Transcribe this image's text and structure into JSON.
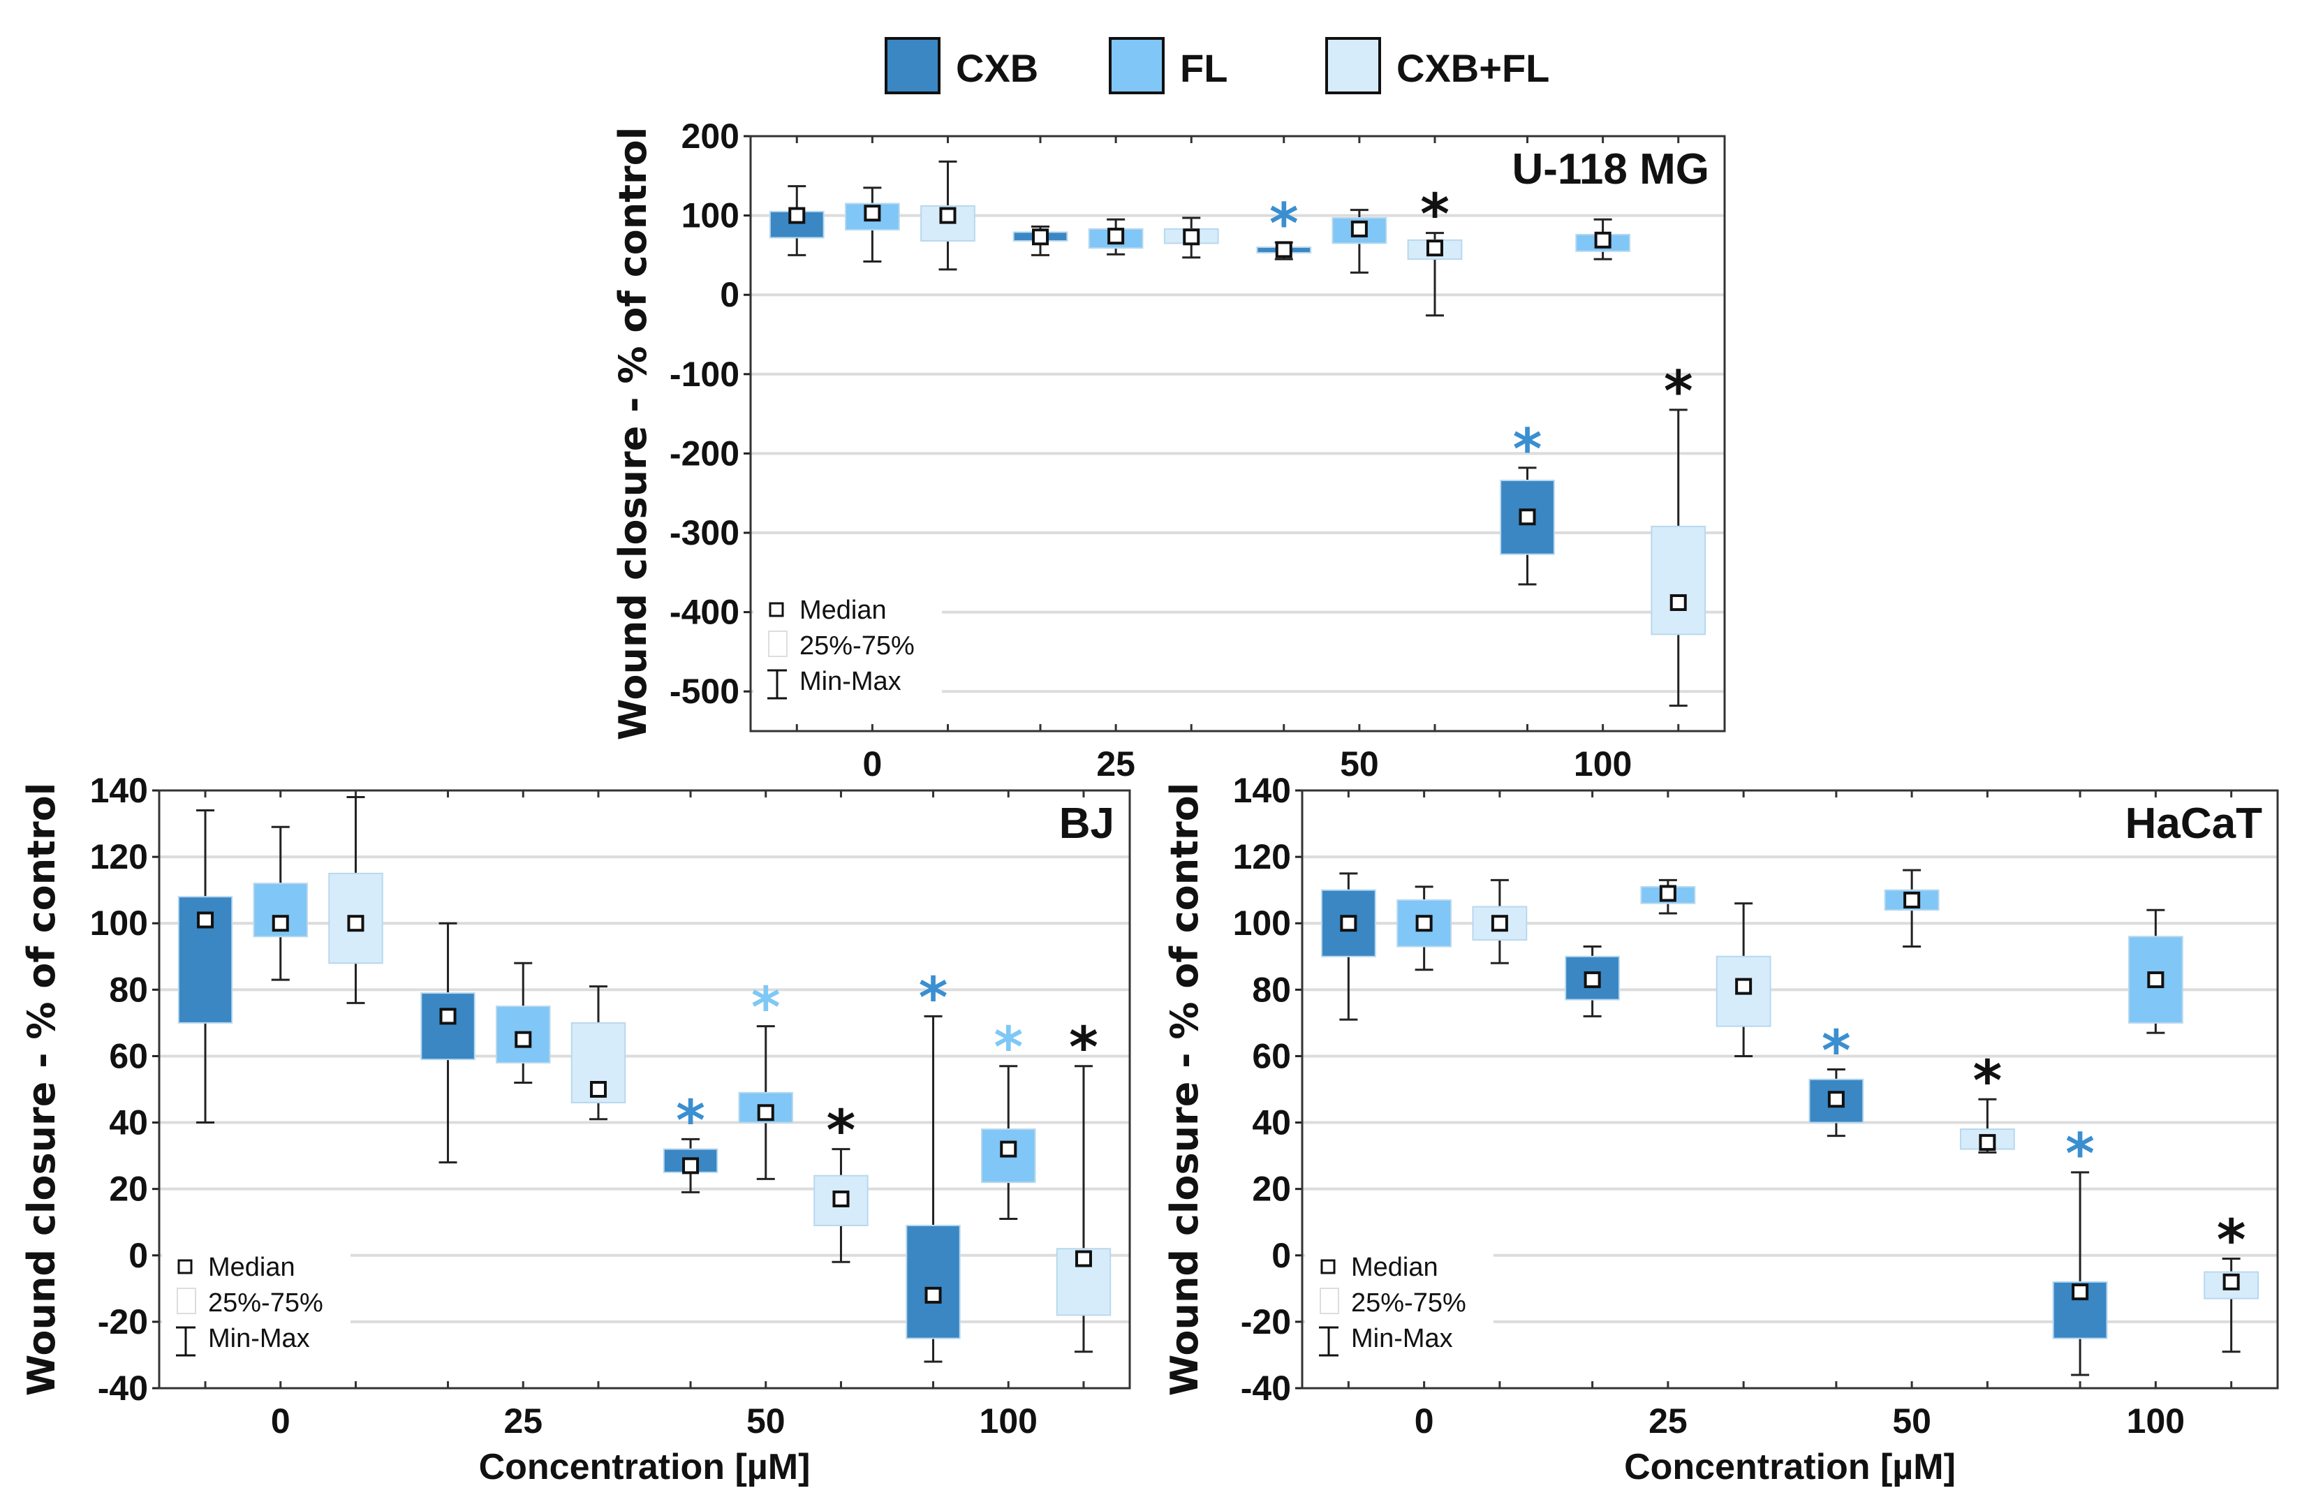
{
  "legend": {
    "series": [
      {
        "name": "CXB",
        "color": "#3a87c4"
      },
      {
        "name": "FL",
        "color": "#80c6f6"
      },
      {
        "name": "CXB+FL",
        "color": "#d7ecfb"
      }
    ],
    "inner": {
      "median": "Median",
      "box": "25%-75%",
      "whisker": "Min-Max"
    }
  },
  "star_colors": {
    "blue": "#3a8fd0",
    "light": "#7fc8f5",
    "black": "#111111"
  },
  "chart_data": [
    {
      "type": "box",
      "title": "U-118 MG",
      "ylabel": "Wound closure - % of control",
      "xlabel": "",
      "categories": [
        "0",
        "25",
        "50",
        "100"
      ],
      "ylim": [
        -550,
        200
      ],
      "yticks": [
        200,
        100,
        0,
        -100,
        -200,
        -300,
        -400,
        -500
      ],
      "grid": true,
      "boxes": [
        {
          "group": 0,
          "series": 0,
          "min": 50,
          "q1": 72,
          "median": 100,
          "q3": 105,
          "max": 137,
          "star": null
        },
        {
          "group": 0,
          "series": 1,
          "min": 42,
          "q1": 82,
          "median": 103,
          "q3": 115,
          "max": 135,
          "star": null
        },
        {
          "group": 0,
          "series": 2,
          "min": 32,
          "q1": 68,
          "median": 100,
          "q3": 112,
          "max": 168,
          "star": null
        },
        {
          "group": 1,
          "series": 0,
          "min": 50,
          "q1": 68,
          "median": 73,
          "q3": 79,
          "max": 86,
          "star": null
        },
        {
          "group": 1,
          "series": 1,
          "min": 51,
          "q1": 59,
          "median": 74,
          "q3": 83,
          "max": 95,
          "star": null
        },
        {
          "group": 1,
          "series": 2,
          "min": 47,
          "q1": 65,
          "median": 73,
          "q3": 83,
          "max": 97,
          "star": null
        },
        {
          "group": 2,
          "series": 0,
          "min": 45,
          "q1": 53,
          "median": 57,
          "q3": 60,
          "max": 66,
          "star": "blue"
        },
        {
          "group": 2,
          "series": 1,
          "min": 28,
          "q1": 65,
          "median": 83,
          "q3": 97,
          "max": 107,
          "star": null
        },
        {
          "group": 2,
          "series": 2,
          "min": -26,
          "q1": 45,
          "median": 59,
          "q3": 69,
          "max": 78,
          "star": "black"
        },
        {
          "group": 3,
          "series": 0,
          "min": -365,
          "q1": -327,
          "median": -280,
          "q3": -234,
          "max": -218,
          "star": "blue"
        },
        {
          "group": 3,
          "series": 1,
          "min": 45,
          "q1": 55,
          "median": 69,
          "q3": 76,
          "max": 95,
          "star": null
        },
        {
          "group": 3,
          "series": 2,
          "min": -518,
          "q1": -428,
          "median": -388,
          "q3": -292,
          "max": -145,
          "star": "black"
        }
      ]
    },
    {
      "type": "box",
      "title": "BJ",
      "ylabel": "Wound closure - % of control",
      "xlabel": "Concentration [µM]",
      "categories": [
        "0",
        "25",
        "50",
        "100"
      ],
      "ylim": [
        -40,
        140
      ],
      "yticks": [
        140,
        120,
        100,
        80,
        60,
        40,
        20,
        0,
        -20,
        -40
      ],
      "grid": true,
      "boxes": [
        {
          "group": 0,
          "series": 0,
          "min": 40,
          "q1": 70,
          "median": 101,
          "q3": 108,
          "max": 134,
          "star": null
        },
        {
          "group": 0,
          "series": 1,
          "min": 83,
          "q1": 96,
          "median": 100,
          "q3": 112,
          "max": 129,
          "star": null
        },
        {
          "group": 0,
          "series": 2,
          "min": 76,
          "q1": 88,
          "median": 100,
          "q3": 115,
          "max": 138,
          "star": null
        },
        {
          "group": 1,
          "series": 0,
          "min": 28,
          "q1": 59,
          "median": 72,
          "q3": 79,
          "max": 100,
          "star": null
        },
        {
          "group": 1,
          "series": 1,
          "min": 52,
          "q1": 58,
          "median": 65,
          "q3": 75,
          "max": 88,
          "star": null
        },
        {
          "group": 1,
          "series": 2,
          "min": 41,
          "q1": 46,
          "median": 50,
          "q3": 70,
          "max": 81,
          "star": null
        },
        {
          "group": 2,
          "series": 0,
          "min": 19,
          "q1": 25,
          "median": 27,
          "q3": 32,
          "max": 35,
          "star": "blue"
        },
        {
          "group": 2,
          "series": 1,
          "min": 23,
          "q1": 40,
          "median": 43,
          "q3": 49,
          "max": 69,
          "star": "light"
        },
        {
          "group": 2,
          "series": 2,
          "min": -2,
          "q1": 9,
          "median": 17,
          "q3": 24,
          "max": 32,
          "star": "black"
        },
        {
          "group": 3,
          "series": 0,
          "min": -32,
          "q1": -25,
          "median": -12,
          "q3": 9,
          "max": 72,
          "star": "blue"
        },
        {
          "group": 3,
          "series": 1,
          "min": 11,
          "q1": 22,
          "median": 32,
          "q3": 38,
          "max": 57,
          "star": "light"
        },
        {
          "group": 3,
          "series": 2,
          "min": -29,
          "q1": -18,
          "median": -1,
          "q3": 2,
          "max": 57,
          "star": "black"
        }
      ]
    },
    {
      "type": "box",
      "title": "HaCaT",
      "ylabel": "Wound closure - % of control",
      "xlabel": "Concentration [µM]",
      "categories": [
        "0",
        "25",
        "50",
        "100"
      ],
      "ylim": [
        -40,
        140
      ],
      "yticks": [
        140,
        120,
        100,
        80,
        60,
        40,
        20,
        0,
        -20,
        -40
      ],
      "grid": true,
      "boxes": [
        {
          "group": 0,
          "series": 0,
          "min": 71,
          "q1": 90,
          "median": 100,
          "q3": 110,
          "max": 115,
          "star": null
        },
        {
          "group": 0,
          "series": 1,
          "min": 86,
          "q1": 93,
          "median": 100,
          "q3": 107,
          "max": 111,
          "star": null
        },
        {
          "group": 0,
          "series": 2,
          "min": 88,
          "q1": 95,
          "median": 100,
          "q3": 105,
          "max": 113,
          "star": null
        },
        {
          "group": 1,
          "series": 0,
          "min": 72,
          "q1": 77,
          "median": 83,
          "q3": 90,
          "max": 93,
          "star": null
        },
        {
          "group": 1,
          "series": 1,
          "min": 103,
          "q1": 106,
          "median": 109,
          "q3": 111,
          "max": 113,
          "star": null
        },
        {
          "group": 1,
          "series": 2,
          "min": 60,
          "q1": 69,
          "median": 81,
          "q3": 90,
          "max": 106,
          "star": null
        },
        {
          "group": 2,
          "series": 0,
          "min": 36,
          "q1": 40,
          "median": 47,
          "q3": 53,
          "max": 56,
          "star": "blue"
        },
        {
          "group": 2,
          "series": 1,
          "min": 93,
          "q1": 104,
          "median": 107,
          "q3": 110,
          "max": 116,
          "star": null
        },
        {
          "group": 2,
          "series": 2,
          "min": 31,
          "q1": 32,
          "median": 34,
          "q3": 38,
          "max": 47,
          "star": "black"
        },
        {
          "group": 3,
          "series": 0,
          "min": -36,
          "q1": -25,
          "median": -11,
          "q3": -8,
          "max": 25,
          "star": "blue"
        },
        {
          "group": 3,
          "series": 1,
          "min": 67,
          "q1": 70,
          "median": 83,
          "q3": 96,
          "max": 104,
          "star": null
        },
        {
          "group": 3,
          "series": 2,
          "min": -29,
          "q1": -13,
          "median": -8,
          "q3": -5,
          "max": -1,
          "star": "black"
        }
      ]
    }
  ]
}
